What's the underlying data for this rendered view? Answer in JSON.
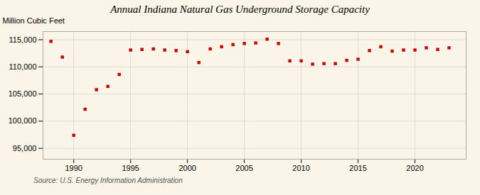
{
  "chart_data": {
    "type": "scatter",
    "title": "Annual Indiana Natural Gas Underground Storage Capacity",
    "ylabel": "Million Cubic Feet",
    "annotations": [
      "Source: U.S. Energy Information Administration"
    ],
    "x": [
      1988,
      1989,
      1990,
      1991,
      1992,
      1993,
      1994,
      1995,
      1996,
      1997,
      1998,
      1999,
      2000,
      2001,
      2002,
      2003,
      2004,
      2005,
      2006,
      2007,
      2008,
      2009,
      2010,
      2011,
      2012,
      2013,
      2014,
      2015,
      2016,
      2017,
      2018,
      2019,
      2020,
      2021,
      2022,
      2023
    ],
    "values": [
      114700,
      111800,
      97400,
      102200,
      105800,
      106400,
      108600,
      113100,
      113200,
      113300,
      113100,
      113000,
      112800,
      110800,
      113300,
      113700,
      114100,
      114300,
      114400,
      115100,
      114300,
      111100,
      111100,
      110500,
      110600,
      110600,
      111200,
      111400,
      113000,
      113700,
      112900,
      113100,
      113100,
      113500,
      113200,
      113500
    ],
    "color": "#cc0000",
    "marker": "square",
    "xlim": [
      1987.3,
      2024.5
    ],
    "xticks": [
      1990,
      1995,
      2000,
      2005,
      2010,
      2015,
      2020
    ],
    "ylim": [
      93000,
      116500
    ],
    "yticks": [
      {
        "value": 95000,
        "label": "95,000"
      },
      {
        "value": 100000,
        "label": "100,000"
      },
      {
        "value": 105000,
        "label": "105,000"
      },
      {
        "value": 110000,
        "label": "110,000"
      },
      {
        "value": 115000,
        "label": "115,000"
      }
    ],
    "grid": true
  }
}
